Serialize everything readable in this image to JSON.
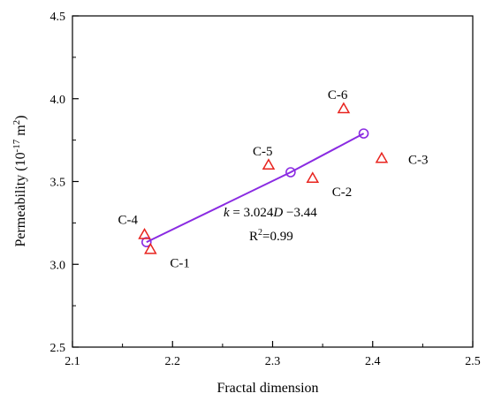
{
  "chart_data": {
    "type": "scatter",
    "xlabel": "Fractal dimension",
    "ylabel_parts": {
      "main": "Permeability (10",
      "exp": "-17",
      "unit": " m",
      "unit_exp": "2",
      "close": ")"
    },
    "xlim": [
      2.1,
      2.5
    ],
    "ylim": [
      2.5,
      4.5
    ],
    "x_ticks": [
      2.1,
      2.2,
      2.3,
      2.4,
      2.5
    ],
    "x_tick_labels": [
      "2.1",
      "2.2",
      "2.3",
      "2.4",
      "2.5"
    ],
    "y_ticks": [
      2.5,
      3.0,
      3.5,
      4.0,
      4.5
    ],
    "y_tick_labels": [
      "2.5",
      "3.0",
      "3.5",
      "4.0",
      "4.5"
    ],
    "grid": false,
    "series": [
      {
        "marker": "triangle",
        "color": "#e8231e",
        "points": [
          {
            "label": "C-1",
            "x": 2.178,
            "y": 3.09,
            "label_pos": "below-right"
          },
          {
            "label": "C-2",
            "x": 2.34,
            "y": 3.52,
            "label_pos": "below-right"
          },
          {
            "label": "C-3",
            "x": 2.409,
            "y": 3.64,
            "label_pos": "right"
          },
          {
            "label": "C-4",
            "x": 2.172,
            "y": 3.18,
            "label_pos": "above-left"
          },
          {
            "label": "C-5",
            "x": 2.296,
            "y": 3.6,
            "label_pos": "above"
          },
          {
            "label": "C-6",
            "x": 2.371,
            "y": 3.94,
            "label_pos": "above"
          }
        ]
      },
      {
        "marker": "circle",
        "color": "#8a2be2",
        "line": true,
        "points": [
          {
            "x": 2.174,
            "y": 3.134
          },
          {
            "x": 2.318,
            "y": 3.556
          },
          {
            "x": 2.391,
            "y": 3.79
          }
        ]
      }
    ],
    "annotations": {
      "equation": {
        "k": "k",
        "eq": " = 3.024",
        "D": "D",
        "rest": " −3.44"
      },
      "r2": {
        "R": "R",
        "exp": "2",
        "rest": "=0.99"
      }
    }
  }
}
